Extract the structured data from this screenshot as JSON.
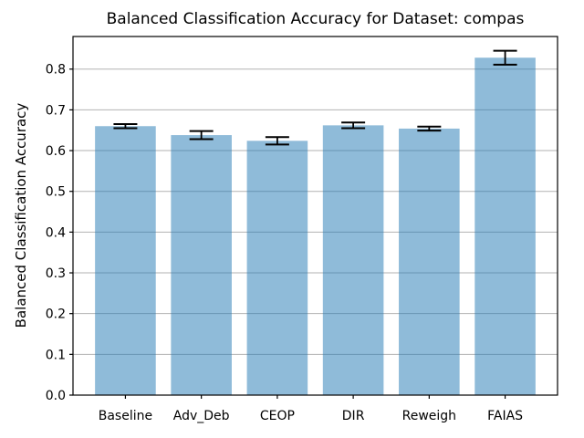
{
  "window": {
    "background": "#ffffff"
  },
  "chart_data": {
    "type": "bar",
    "title": "Balanced Classification Accuracy for Dataset: compas",
    "xlabel": "",
    "ylabel": "Balanced Classification Accuracy",
    "categories": [
      "Baseline",
      "Adv_Deb",
      "CEOP",
      "DIR",
      "Reweigh",
      "FAIAS"
    ],
    "values": [
      0.66,
      0.638,
      0.624,
      0.662,
      0.654,
      0.828
    ],
    "errors": [
      0.005,
      0.01,
      0.009,
      0.007,
      0.005,
      0.017
    ],
    "ylim": [
      0.0,
      0.88
    ],
    "yticks": [
      0.0,
      0.1,
      0.2,
      0.3,
      0.4,
      0.5,
      0.6,
      0.7,
      0.8
    ],
    "ytick_decimals": 1,
    "grid": "horizontal-only",
    "legend": "none",
    "colors": {
      "bar_fill": "#1f77b4",
      "bar_opacity": 0.5,
      "error_bar": "#000000",
      "grid_line": "#b2b2b2",
      "spine": "#000000",
      "text": "#000000"
    }
  }
}
